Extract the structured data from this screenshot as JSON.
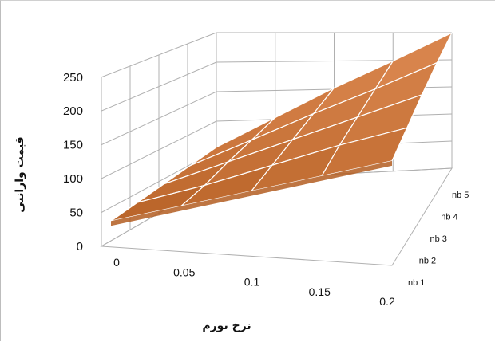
{
  "chart_data": {
    "type": "surface",
    "xlabel": "نرخ تورم",
    "zlabel": "قیمت وارانتی",
    "x": [
      0,
      0.05,
      0.1,
      0.15,
      0.2
    ],
    "x_tick_labels": [
      "0",
      "0.05",
      "0.1",
      "0.15",
      "0.2"
    ],
    "depth_categories": [
      "nb 1",
      "nb 2",
      "nb 3",
      "nb 4",
      "nb 5"
    ],
    "z_ticks": [
      "0",
      "50",
      "100",
      "150",
      "200",
      "250"
    ],
    "zlim": [
      0,
      250
    ],
    "series": [
      {
        "name": "nb 1",
        "values": [
          20,
          55,
          90,
          125,
          160
        ]
      },
      {
        "name": "nb 2",
        "values": [
          30,
          65,
          105,
          145,
          180
        ]
      },
      {
        "name": "nb 3",
        "values": [
          40,
          80,
          120,
          160,
          200
        ]
      },
      {
        "name": "nb 4",
        "values": [
          50,
          92,
          135,
          175,
          218
        ]
      },
      {
        "name": "nb 5",
        "values": [
          60,
          105,
          150,
          190,
          232
        ]
      }
    ],
    "colors": {
      "surface_light": "#e4915a",
      "surface_dark": "#b35d21",
      "mesh": "#ffffff",
      "grid": "#b0b0b0"
    }
  }
}
